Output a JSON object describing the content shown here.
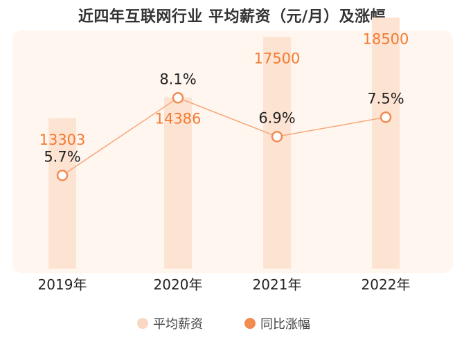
{
  "chart_data": {
    "type": "bar",
    "title": "近四年互联网行业 平均薪资（元/月）及涨幅",
    "categories": [
      "2019年",
      "2020年",
      "2021年",
      "2022年"
    ],
    "series": [
      {
        "name": "平均薪资",
        "type": "bar",
        "values": [
          13303,
          14386,
          17500,
          18500
        ],
        "labels": [
          "13303",
          "14386",
          "17500",
          "18500"
        ]
      },
      {
        "name": "同比涨幅",
        "type": "line",
        "values": [
          5.7,
          8.1,
          6.9,
          7.5
        ],
        "labels": [
          "5.7%",
          "8.1%",
          "6.9%",
          "7.5%"
        ]
      }
    ],
    "legend_position": "bottom-center",
    "grid": false
  },
  "colors": {
    "background_panel": "#FFF6EF",
    "bar": "#FCE3D2",
    "line": "#F7A77A",
    "marker": "#F28B50",
    "value_label": "#F47A30",
    "text": "#222222",
    "legend_salary": "#F8D8C2",
    "legend_growth": "#F28B50"
  }
}
